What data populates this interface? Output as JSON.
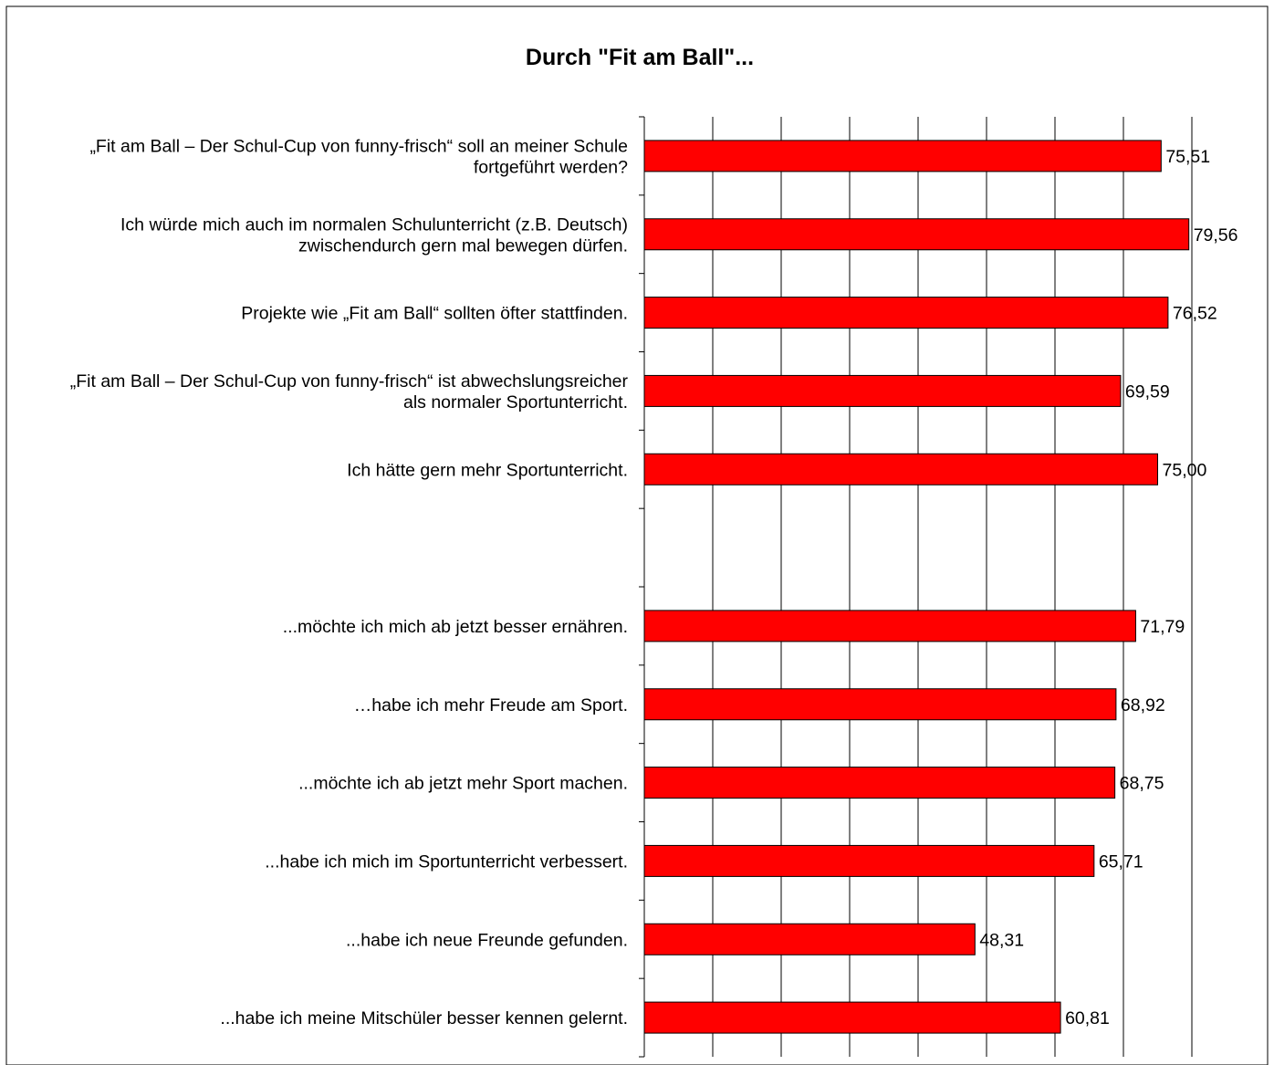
{
  "chart_data": {
    "type": "bar",
    "orientation": "horizontal",
    "title": "Durch \"Fit am Ball\"...",
    "xlabel": "",
    "ylabel": "",
    "xlim": [
      0,
      80
    ],
    "grid": true,
    "legend": "none",
    "bar_color": "#ff0000",
    "categories": [
      [
        "„Fit am Ball – Der Schul-Cup von funny-frisch“ soll an meiner Schule",
        "fortgeführt werden?"
      ],
      [
        "Ich würde mich auch im normalen Schulunterricht (z.B. Deutsch)",
        "zwischendurch gern mal bewegen dürfen."
      ],
      [
        "Projekte wie „Fit am Ball“ sollten öfter stattfinden."
      ],
      [
        "„Fit am Ball – Der Schul-Cup von funny-frisch“ ist abwechslungsreicher",
        "als normaler Sportunterricht."
      ],
      [
        "Ich hätte gern mehr Sportunterricht."
      ],
      [],
      [
        "...möchte ich mich ab jetzt besser ernähren."
      ],
      [
        "…habe ich mehr Freude am Sport."
      ],
      [
        "...möchte ich ab jetzt mehr Sport machen."
      ],
      [
        "...habe ich mich im Sportunterricht verbessert."
      ],
      [
        "...habe ich neue Freunde gefunden."
      ],
      [
        "...habe ich meine Mitschüler besser kennen gelernt."
      ]
    ],
    "values": [
      75.51,
      79.56,
      76.52,
      69.59,
      75.0,
      null,
      71.79,
      68.92,
      68.75,
      65.71,
      48.31,
      60.81
    ],
    "value_labels": [
      "75,51",
      "79,56",
      "76,52",
      "69,59",
      "75,00",
      "",
      "71,79",
      "68,92",
      "68,75",
      "65,71",
      "48,31",
      "60,81"
    ]
  }
}
